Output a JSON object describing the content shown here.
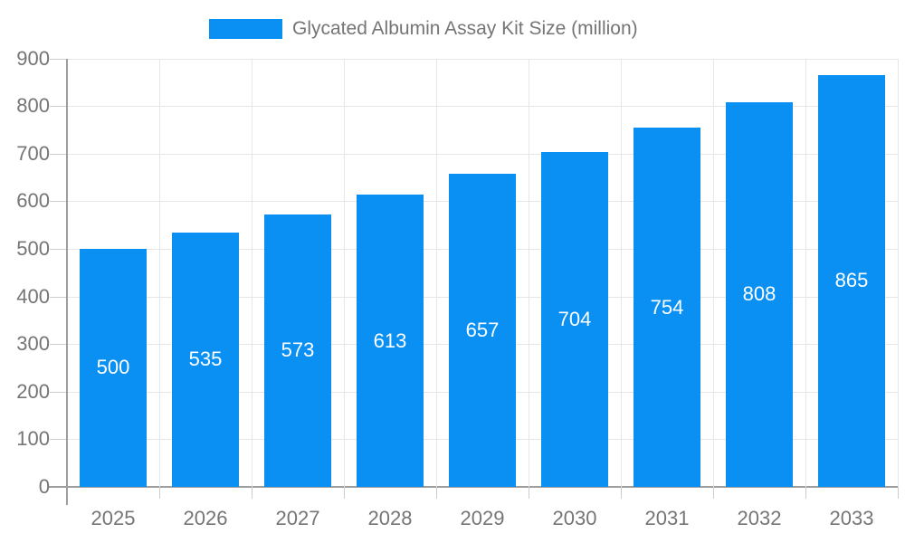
{
  "chart_data": {
    "type": "bar",
    "title": "",
    "legend_label": "Glycated Albumin Assay Kit Size (million)",
    "legend_position": "top-center",
    "categories": [
      "2025",
      "2026",
      "2027",
      "2028",
      "2029",
      "2030",
      "2031",
      "2032",
      "2033"
    ],
    "values": [
      500,
      535,
      573,
      613,
      657,
      704,
      754,
      808,
      865
    ],
    "xlabel": "",
    "ylabel": "",
    "ylim": [
      0,
      900
    ],
    "ytick_step": 100,
    "grid": "on",
    "colors": {
      "bar": "#0a8ff2",
      "bar_label_text": "#ffffff",
      "axis_text": "#757575",
      "axis_line": "#9e9e9e",
      "tick": "#cccccc",
      "gridline": "#e6e6e6",
      "background": "#ffffff"
    }
  }
}
